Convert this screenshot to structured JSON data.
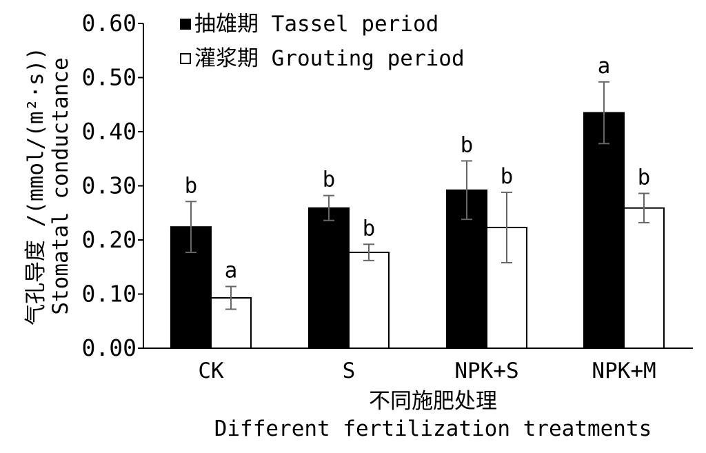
{
  "chart_data": {
    "type": "bar",
    "categories": [
      "CK",
      "S",
      "NPK+S",
      "NPK+M"
    ],
    "series": [
      {
        "name": "抽雄期 Tassel period",
        "color": "#000000",
        "values": [
          0.224,
          0.259,
          0.292,
          0.435
        ],
        "errors": [
          0.047,
          0.023,
          0.054,
          0.057
        ],
        "letters": [
          "b",
          "b",
          "b",
          "a"
        ]
      },
      {
        "name": "灌浆期 Grouting period",
        "color": "#ffffff",
        "values": [
          0.093,
          0.177,
          0.223,
          0.259
        ],
        "errors": [
          0.021,
          0.015,
          0.065,
          0.027
        ],
        "letters": [
          "a",
          "b",
          "b",
          "b"
        ]
      }
    ],
    "ylabel_cn": "气孔导度 /(mmol/(m²·s))",
    "ylabel_en": "Stomatal conductance",
    "xlabel_cn": "不同施肥处理",
    "xlabel_en": "Different fertilization treatments",
    "ylim": [
      0,
      0.6
    ],
    "yticks": [
      "0.00",
      "0.10",
      "0.20",
      "0.30",
      "0.40",
      "0.50",
      "0.60"
    ],
    "grid": false,
    "legend_position": "top-left"
  }
}
